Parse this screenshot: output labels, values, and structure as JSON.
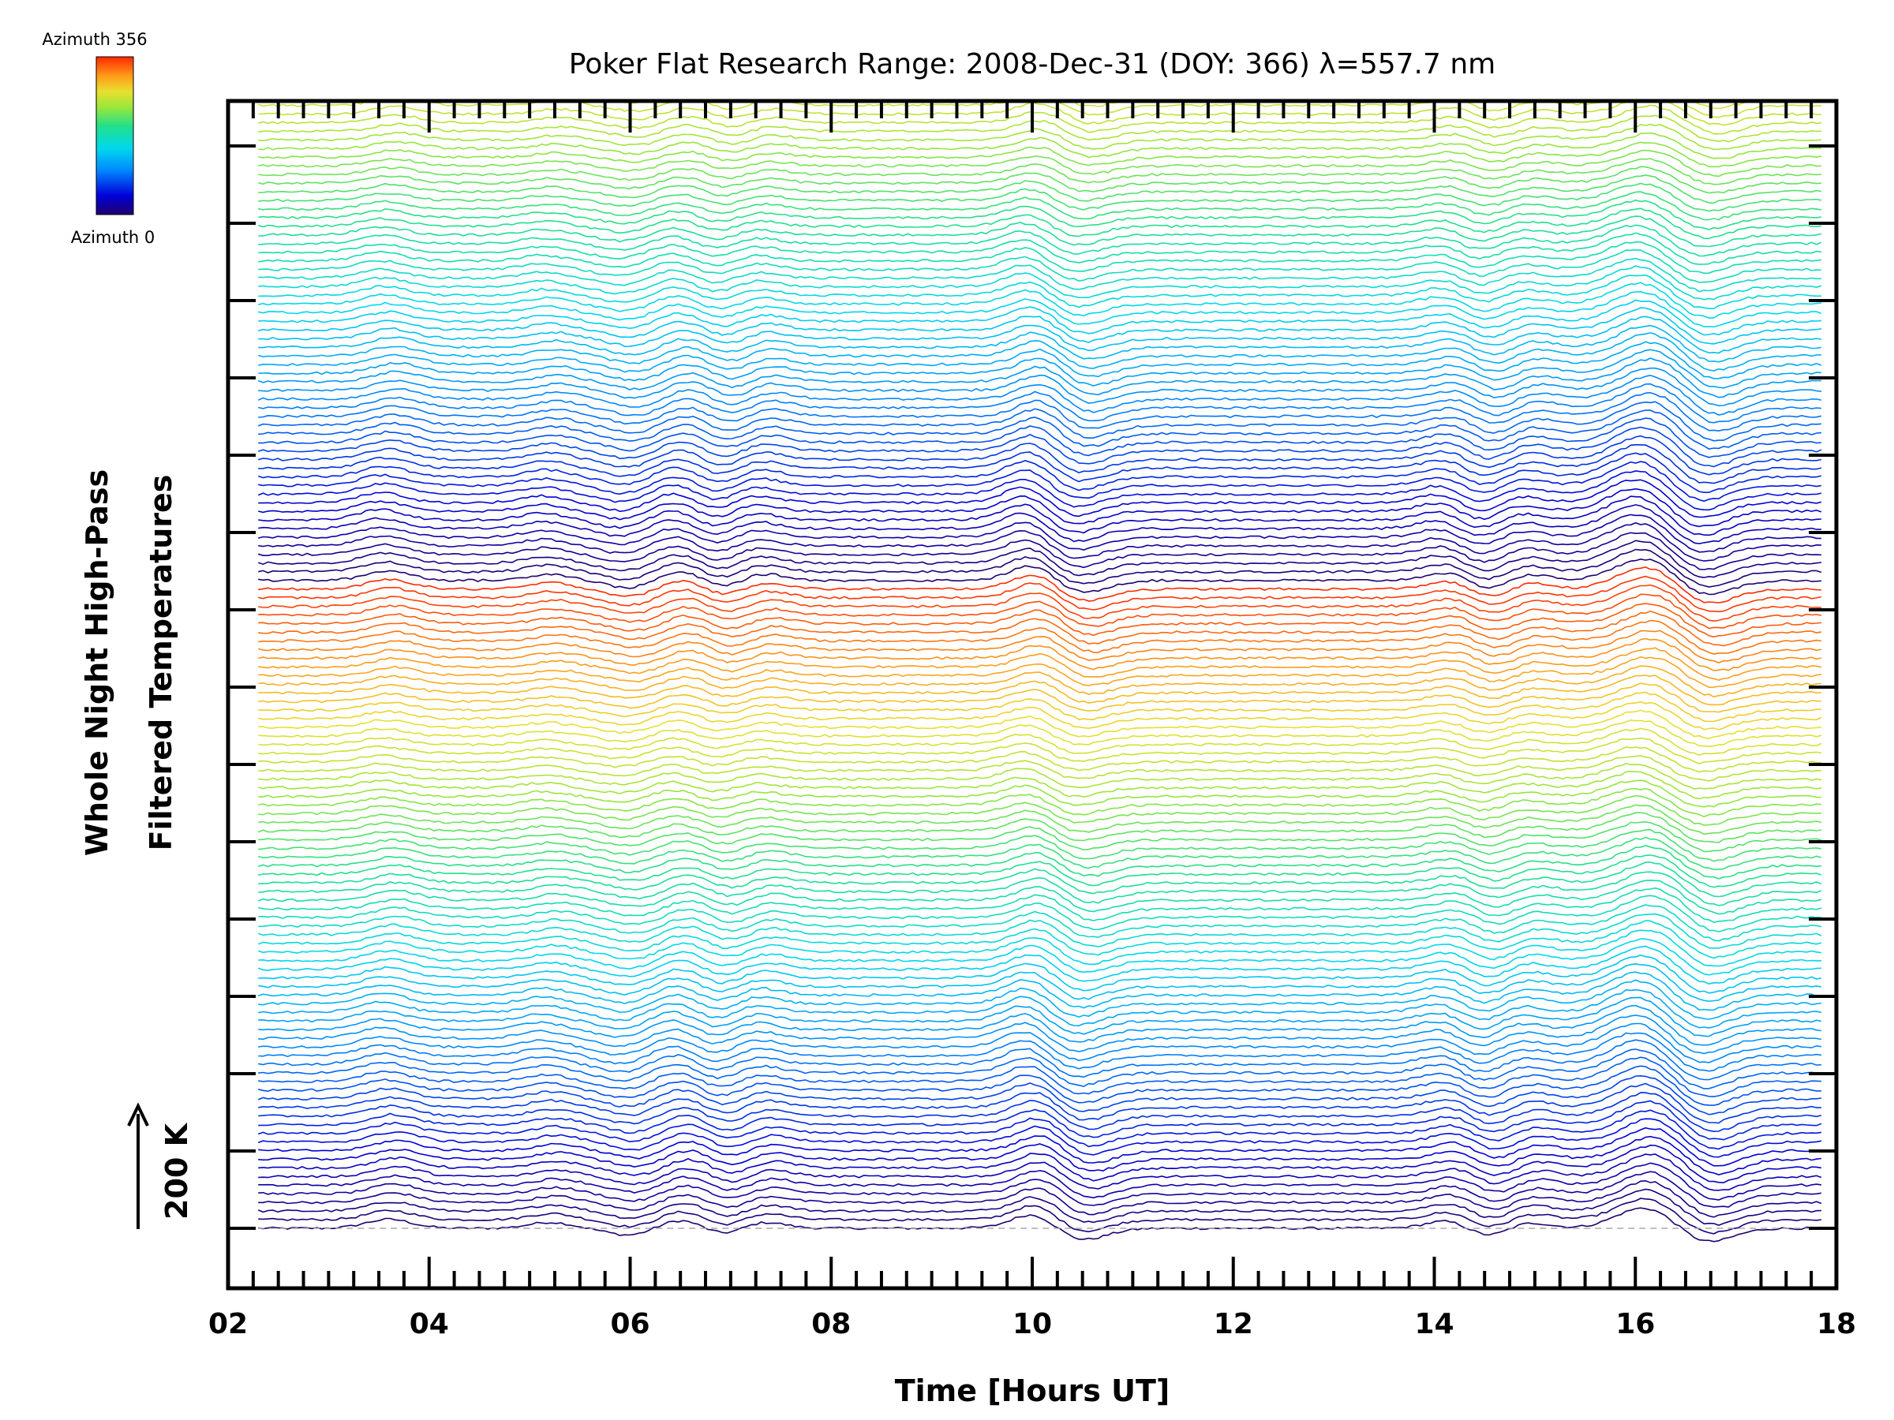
{
  "chart_data": {
    "type": "line",
    "title": "Poker Flat Research Range: 2008-Dec-31 (DOY: 366) λ=557.7 nm",
    "xlabel": "Time [Hours UT]",
    "ylabel": [
      "Whole Night High-Pass",
      "Filtered Temperatures"
    ],
    "xlim": [
      2,
      18
    ],
    "x_ticks": [
      "02",
      "04",
      "06",
      "08",
      "10",
      "12",
      "14",
      "16",
      "18"
    ],
    "scale_bar": "200 K",
    "colorbar": {
      "top_label": "Azimuth 356",
      "bottom_label": "Azimuth 0"
    },
    "x_start": 2.3,
    "x_end": 17.85,
    "series_count": 139,
    "azimuth_range": [
      0,
      356
    ],
    "stacked_offset_K": 15,
    "features": [
      {
        "center_hr": 3.6,
        "amplitude_K": 15
      },
      {
        "center_hr": 5.2,
        "amplitude_K": 10
      },
      {
        "center_hr": 6.0,
        "amplitude_K": -12
      },
      {
        "center_hr": 6.6,
        "amplitude_K": 22
      },
      {
        "center_hr": 6.85,
        "amplitude_K": -20
      },
      {
        "center_hr": 7.3,
        "amplitude_K": 12
      },
      {
        "center_hr": 9.75,
        "amplitude_K": -15
      },
      {
        "center_hr": 10.0,
        "amplitude_K": 40
      },
      {
        "center_hr": 10.4,
        "amplitude_K": -30
      },
      {
        "center_hr": 14.2,
        "amplitude_K": 18
      },
      {
        "center_hr": 14.5,
        "amplitude_K": -20
      },
      {
        "center_hr": 14.9,
        "amplitude_K": 12
      },
      {
        "center_hr": 16.1,
        "amplitude_K": 35
      },
      {
        "center_hr": 16.7,
        "amplitude_K": -25
      }
    ],
    "colors": {
      "axis": "#000000",
      "baseline": "#aaaaaa"
    }
  }
}
